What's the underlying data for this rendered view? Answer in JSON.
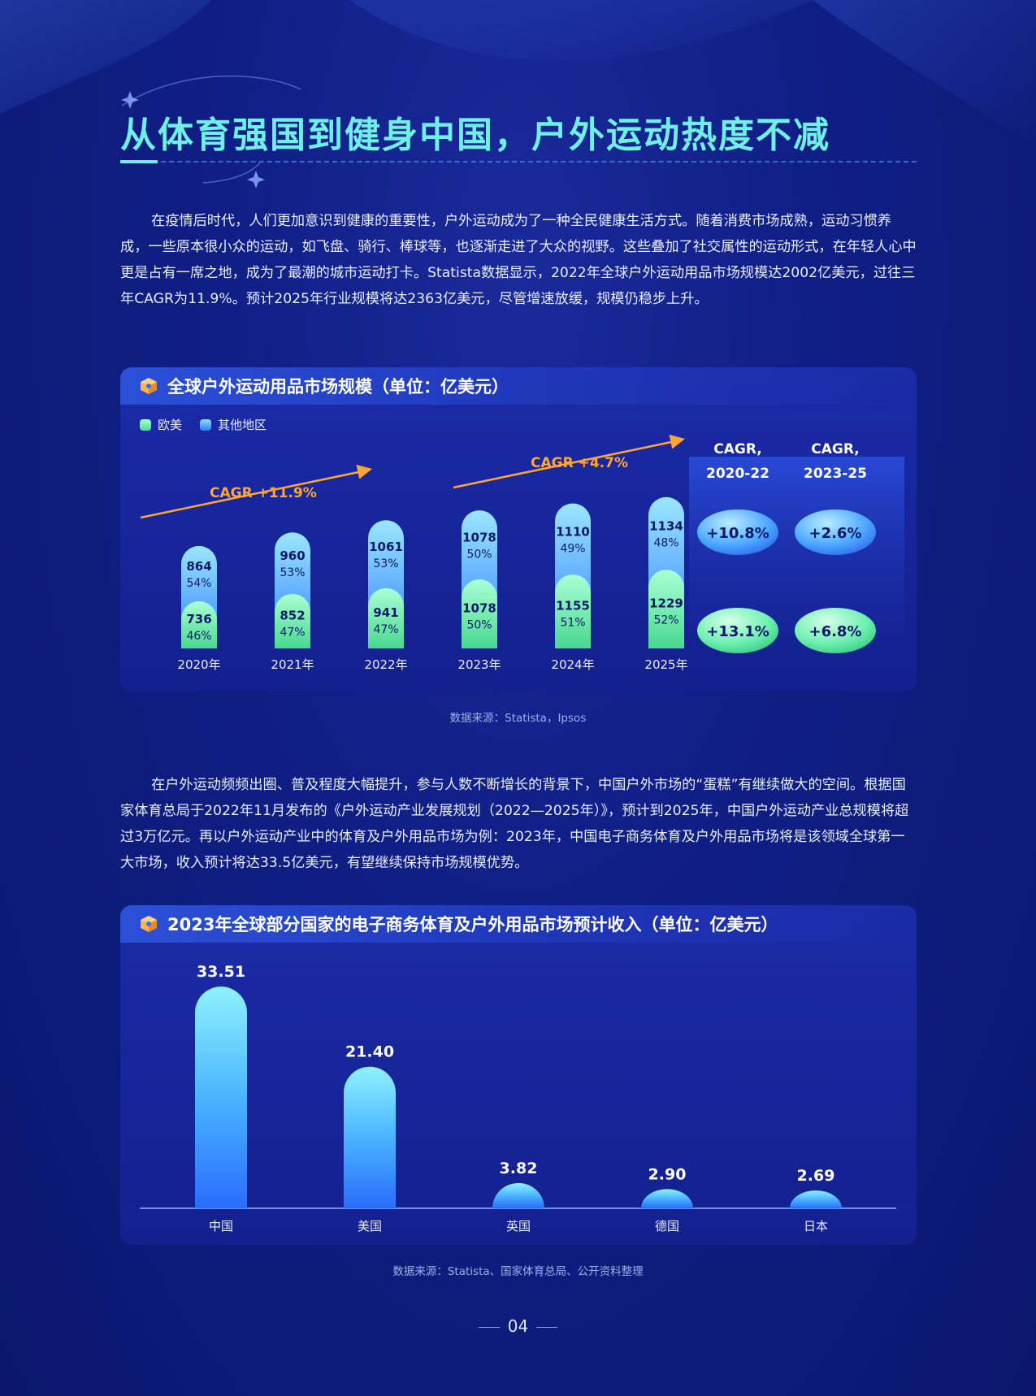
{
  "title": "从体育强国到健身中国，户外运动热度不减",
  "para1": "在疫情后时代，人们更加意识到健康的重要性，户外运动成为了一种全民健康生活方式。随着消费市场成熟，运动习惯养成，一些原本很小众的运动，如飞盘、骑行、棒球等，也逐渐走进了大众的视野。这些叠加了社交属性的运动形式，在年轻人心中更是占有一席之地，成为了最潮的城市运动打卡。Statista数据显示，2022年全球户外运动用品市场规模达2002亿美元，过往三年CAGR为11.9%。预计2025年行业规模将达2363亿美元，尽管增速放缓，规模仍稳步上升。",
  "para2": "在户外运动频频出圈、普及程度大幅提升，参与人数不断增长的背景下，中国户外市场的“蛋糕”有继续做大的空间。根据国家体育总局于2022年11月发布的《户外运动产业发展规划（2022—2025年）》，预计到2025年，中国户外运动产业总规模将超过3万亿元。再以户外运动产业中的体育及户外用品市场为例：2023年，中国电子商务体育及户外用品市场将是该领域全球第一大市场，收入预计将达33.5亿美元，有望继续保持市场规模优势。",
  "source1": "数据来源：Statista，Ipsos",
  "source2": "数据来源：Statista、国家体育总局、公开资料整理",
  "page_number": "04",
  "colors": {
    "accent": "#6ff0e6",
    "green": "#7ff0b8",
    "blue": "#59b6ff",
    "orange": "#ffa533"
  },
  "chart_data": [
    {
      "type": "bar",
      "stacked": true,
      "title": "全球户外运动用品市场规模（单位：亿美元）",
      "categories": [
        "2020年",
        "2021年",
        "2022年",
        "2023年",
        "2024年",
        "2025年"
      ],
      "series": [
        {
          "name": "欧美",
          "values": [
            736,
            852,
            941,
            1078,
            1155,
            1229
          ],
          "shares": [
            "46%",
            "47%",
            "47%",
            "50%",
            "51%",
            "52%"
          ]
        },
        {
          "name": "其他地区",
          "values": [
            864,
            960,
            1061,
            1078,
            1110,
            1134
          ],
          "shares": [
            "54%",
            "53%",
            "53%",
            "50%",
            "49%",
            "48%"
          ]
        }
      ],
      "annotations": [
        {
          "text": "CAGR +11.9%",
          "from": "2020年",
          "to": "2022年"
        },
        {
          "text": "CAGR +4.7%",
          "from": "2023年",
          "to": "2025年"
        }
      ],
      "cagr_table": {
        "headers": [
          "CAGR,\n2020-22",
          "CAGR,\n2023-25"
        ],
        "rows": [
          {
            "series": "其他地区",
            "values": [
              "+10.8%",
              "+2.6%"
            ]
          },
          {
            "series": "欧美",
            "values": [
              "+13.1%",
              "+6.8%"
            ]
          }
        ]
      }
    },
    {
      "type": "bar",
      "title": "2023年全球部分国家的电子商务体育及户外用品市场预计收入（单位：亿美元）",
      "categories": [
        "中国",
        "美国",
        "英国",
        "德国",
        "日本"
      ],
      "values": [
        33.51,
        21.4,
        3.82,
        2.9,
        2.69
      ],
      "labels": [
        "33.51",
        "21.40",
        "3.82",
        "2.90",
        "2.69"
      ],
      "ylim": [
        0,
        35
      ]
    }
  ]
}
